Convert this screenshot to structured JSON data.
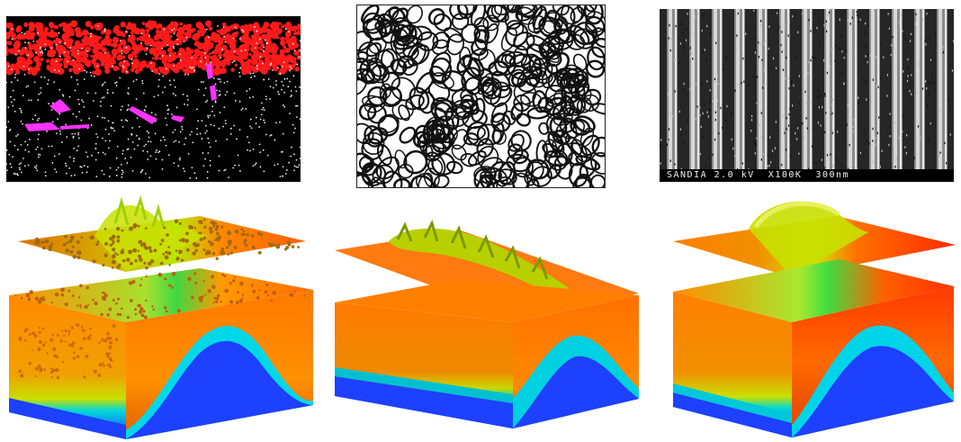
{
  "top_row": {
    "atomistic_panel": {
      "icon": "atom-cloud-icon"
    },
    "grain_panel": {
      "icon": "grain-network-icon"
    },
    "sem_panel": {
      "caption": "SANDIA 2.0 kV  X100K  300nm"
    }
  },
  "bottom_row": {
    "block_1": {
      "icon": "surface-block-rough-icon"
    },
    "block_2": {
      "icon": "surface-block-ridged-icon"
    },
    "block_3": {
      "icon": "surface-block-smooth-icon"
    }
  },
  "colors": {
    "hot": "#ff3a00",
    "orange": "#ff8c00",
    "yellow": "#e6e600",
    "green": "#33dd44",
    "cyan": "#00dddd",
    "blue": "#1e40ff",
    "magenta": "#ff33ff",
    "red_particles": "#ff1a1a"
  }
}
